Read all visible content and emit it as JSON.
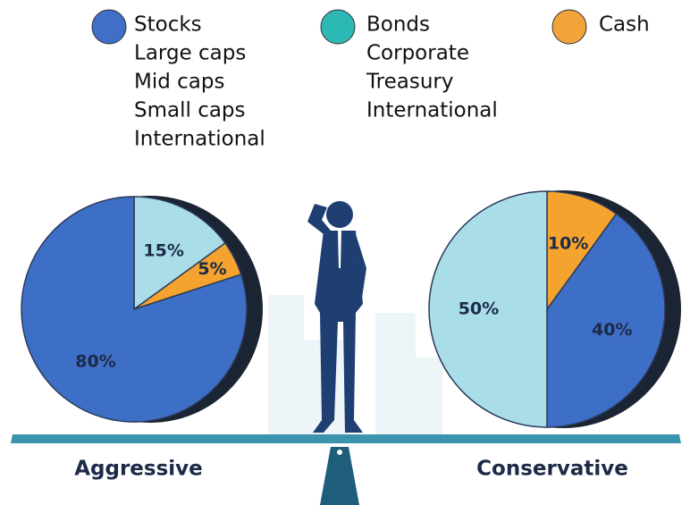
{
  "legend": [
    {
      "name": "Stocks",
      "color": "#3f6fc6",
      "items": [
        "Large caps",
        "Mid caps",
        "Small caps",
        "International"
      ]
    },
    {
      "name": "Bonds",
      "color": "#2cb9b6",
      "items": [
        "Corporate",
        "Treasury",
        "International"
      ]
    },
    {
      "name": "Cash",
      "color": "#f2a33a",
      "items": []
    }
  ],
  "chart_data": [
    {
      "type": "pie",
      "title": "Aggressive",
      "categories": [
        "Bonds",
        "Cash",
        "Stocks"
      ],
      "values": [
        15,
        5,
        80
      ],
      "value_labels": [
        "15%",
        "5%",
        "80%"
      ],
      "colors": [
        "#a9dde8",
        "#f4a32e",
        "#3e6fc6"
      ]
    },
    {
      "type": "pie",
      "title": "Conservative",
      "categories": [
        "Cash",
        "Stocks",
        "Bonds"
      ],
      "values": [
        10,
        40,
        50
      ],
      "value_labels": [
        "10%",
        "40%",
        "50%"
      ],
      "colors": [
        "#f4a32e",
        "#3e6fc6",
        "#a9dde8"
      ]
    }
  ]
}
